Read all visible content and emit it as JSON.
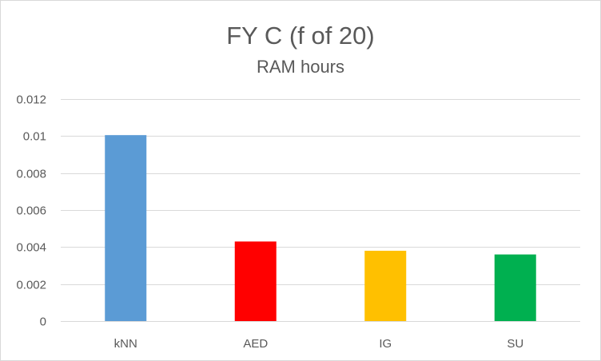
{
  "chart_data": {
    "type": "bar",
    "title": "FY C (f of 20)",
    "subtitle": "RAM hours",
    "categories": [
      "kNN",
      "AED",
      "IG",
      "SU"
    ],
    "values": [
      0.01005,
      0.0043,
      0.0038,
      0.0036
    ],
    "colors": [
      "#5b9bd5",
      "#ff0000",
      "#ffc000",
      "#00b050"
    ],
    "ylim": [
      0,
      0.012
    ],
    "yticks": [
      0,
      0.002,
      0.004,
      0.006,
      0.008,
      0.01,
      0.012
    ],
    "ytick_labels": [
      "0",
      "0.002",
      "0.004",
      "0.006",
      "0.008",
      "0.01",
      "0.012"
    ],
    "grid": true,
    "legend": "none"
  }
}
